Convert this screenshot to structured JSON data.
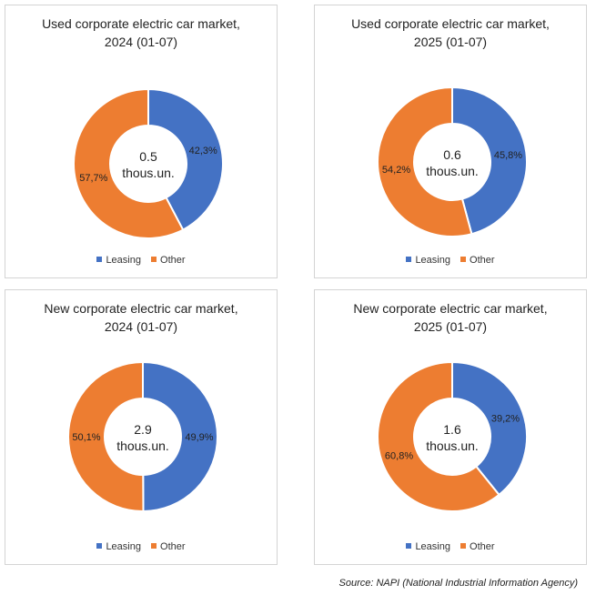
{
  "colors": {
    "leasing": "#4472C4",
    "other": "#ED7D31"
  },
  "legend": {
    "leasing": "Leasing",
    "other": "Other"
  },
  "source": "Source: NAPI (National Industrial Information Agency)",
  "chart_data": [
    {
      "type": "pie",
      "title_lines": [
        "Used corporate electric car market,",
        "2024 (01-07)"
      ],
      "center_lines": [
        "0.5",
        "thous.un."
      ],
      "categories": [
        "Leasing",
        "Other"
      ],
      "values": [
        42.3,
        57.7
      ],
      "value_labels": [
        "42,3%",
        "57,7%"
      ]
    },
    {
      "type": "pie",
      "title_lines": [
        "Used corporate electric car market,",
        "2025 (01-07)"
      ],
      "center_lines": [
        "0.6",
        "thous.un."
      ],
      "categories": [
        "Leasing",
        "Other"
      ],
      "values": [
        45.8,
        54.2
      ],
      "value_labels": [
        "45,8%",
        "54,2%"
      ]
    },
    {
      "type": "pie",
      "title_lines": [
        "New corporate electric car market,",
        "2024 (01-07)"
      ],
      "center_lines": [
        "2.9",
        "thous.un."
      ],
      "categories": [
        "Leasing",
        "Other"
      ],
      "values": [
        49.9,
        50.1
      ],
      "value_labels": [
        "49,9%",
        "50,1%"
      ]
    },
    {
      "type": "pie",
      "title_lines": [
        "New corporate electric car market,",
        "2025 (01-07)"
      ],
      "center_lines": [
        "1.6",
        "thous.un."
      ],
      "categories": [
        "Leasing",
        "Other"
      ],
      "values": [
        39.2,
        60.8
      ],
      "value_labels": [
        "39,2%",
        "60,8%"
      ]
    }
  ]
}
